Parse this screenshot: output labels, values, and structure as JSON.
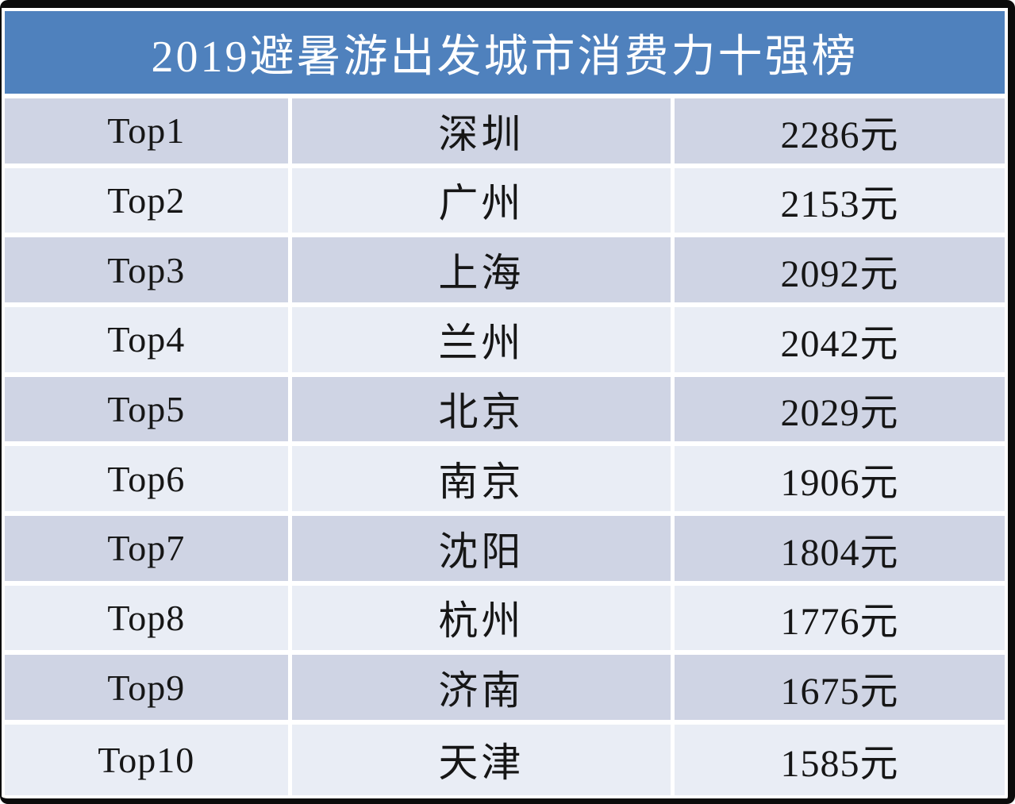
{
  "page": {
    "title": "2019避暑游出发城市消费力十强榜"
  },
  "colors": {
    "header_bg": "#4f81bd",
    "header_text": "#ffffff",
    "row_odd_bg": "#cfd4e4",
    "row_even_bg": "#e9edf5",
    "cell_text": "#161616",
    "gap": "#ffffff",
    "frame": "#0b0b0b"
  },
  "chart_data": {
    "type": "table",
    "title": "2019避暑游出发城市消费力十强榜",
    "columns": [
      "rank",
      "city",
      "avg_spend"
    ],
    "unit": "元",
    "values_yuan": [
      2286,
      2153,
      2092,
      2042,
      2029,
      1906,
      1804,
      1776,
      1675,
      1585
    ],
    "rows": [
      {
        "rank": "Top1",
        "city": "深圳",
        "spend": "2286元"
      },
      {
        "rank": "Top2",
        "city": "广州",
        "spend": "2153元"
      },
      {
        "rank": "Top3",
        "city": "上海",
        "spend": "2092元"
      },
      {
        "rank": "Top4",
        "city": "兰州",
        "spend": "2042元"
      },
      {
        "rank": "Top5",
        "city": "北京",
        "spend": "2029元"
      },
      {
        "rank": "Top6",
        "city": "南京",
        "spend": "1906元"
      },
      {
        "rank": "Top7",
        "city": "沈阳",
        "spend": "1804元"
      },
      {
        "rank": "Top8",
        "city": "杭州",
        "spend": "1776元"
      },
      {
        "rank": "Top9",
        "city": "济南",
        "spend": "1675元"
      },
      {
        "rank": "Top10",
        "city": "天津",
        "spend": "1585元"
      }
    ]
  }
}
